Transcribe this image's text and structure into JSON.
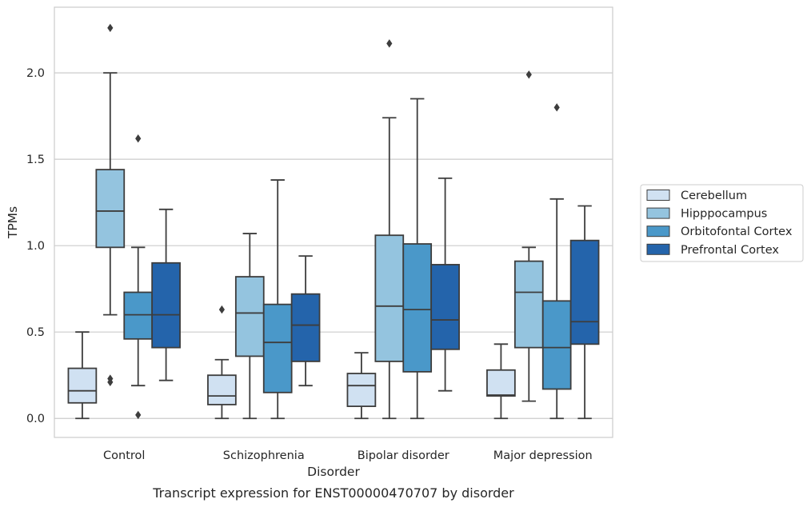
{
  "chart_data": {
    "type": "box",
    "caption": "Transcript expression for ENST00000470707 by disorder",
    "xlabel": "Disorder",
    "ylabel": "TPMs",
    "ylim": [
      -0.11,
      2.38
    ],
    "yticks": [
      0.0,
      0.5,
      1.0,
      1.5,
      2.0
    ],
    "ytick_labels": [
      "0.0",
      "0.5",
      "1.0",
      "1.5",
      "2.0"
    ],
    "grid": "horizontal",
    "legend_position": "right",
    "categories": [
      "Control",
      "Schizophrenia",
      "Bipolar disorder",
      "Major depression"
    ],
    "series": [
      {
        "name": "Cerebellum",
        "color": "#d0e1f2",
        "boxes": [
          {
            "whislo": 0.0,
            "q1": 0.09,
            "med": 0.16,
            "q3": 0.29,
            "whishi": 0.5,
            "fliers": []
          },
          {
            "whislo": 0.0,
            "q1": 0.08,
            "med": 0.13,
            "q3": 0.25,
            "whishi": 0.34,
            "fliers": [
              0.63
            ]
          },
          {
            "whislo": 0.0,
            "q1": 0.07,
            "med": 0.19,
            "q3": 0.26,
            "whishi": 0.38,
            "fliers": []
          },
          {
            "whislo": 0.0,
            "q1": 0.13,
            "med": 0.135,
            "q3": 0.28,
            "whishi": 0.43,
            "fliers": []
          }
        ]
      },
      {
        "name": "Hipppocampus",
        "color": "#94c4df",
        "boxes": [
          {
            "whislo": 0.6,
            "q1": 0.99,
            "med": 1.2,
            "q3": 1.44,
            "whishi": 2.0,
            "fliers": [
              2.26,
              0.23,
              0.21
            ]
          },
          {
            "whislo": 0.0,
            "q1": 0.36,
            "med": 0.61,
            "q3": 0.82,
            "whishi": 1.07,
            "fliers": []
          },
          {
            "whislo": 0.0,
            "q1": 0.33,
            "med": 0.65,
            "q3": 1.06,
            "whishi": 1.74,
            "fliers": [
              2.17
            ]
          },
          {
            "whislo": 0.1,
            "q1": 0.41,
            "med": 0.73,
            "q3": 0.91,
            "whishi": 0.99,
            "fliers": [
              1.99
            ]
          }
        ]
      },
      {
        "name": "Orbitofontal Cortex",
        "color": "#4a98c9",
        "boxes": [
          {
            "whislo": 0.19,
            "q1": 0.46,
            "med": 0.6,
            "q3": 0.73,
            "whishi": 0.99,
            "fliers": [
              1.62,
              0.02
            ]
          },
          {
            "whislo": 0.0,
            "q1": 0.15,
            "med": 0.44,
            "q3": 0.66,
            "whishi": 1.38,
            "fliers": []
          },
          {
            "whislo": 0.0,
            "q1": 0.27,
            "med": 0.63,
            "q3": 1.01,
            "whishi": 1.85,
            "fliers": []
          },
          {
            "whislo": 0.0,
            "q1": 0.17,
            "med": 0.41,
            "q3": 0.68,
            "whishi": 1.27,
            "fliers": [
              1.8
            ]
          }
        ]
      },
      {
        "name": "Prefrontal Cortex",
        "color": "#2464ab",
        "boxes": [
          {
            "whislo": 0.22,
            "q1": 0.41,
            "med": 0.6,
            "q3": 0.9,
            "whishi": 1.21,
            "fliers": []
          },
          {
            "whislo": 0.19,
            "q1": 0.33,
            "med": 0.54,
            "q3": 0.72,
            "whishi": 0.94,
            "fliers": []
          },
          {
            "whislo": 0.16,
            "q1": 0.4,
            "med": 0.57,
            "q3": 0.89,
            "whishi": 1.39,
            "fliers": []
          },
          {
            "whislo": 0.0,
            "q1": 0.43,
            "med": 0.56,
            "q3": 1.03,
            "whishi": 1.23,
            "fliers": []
          }
        ]
      }
    ]
  }
}
